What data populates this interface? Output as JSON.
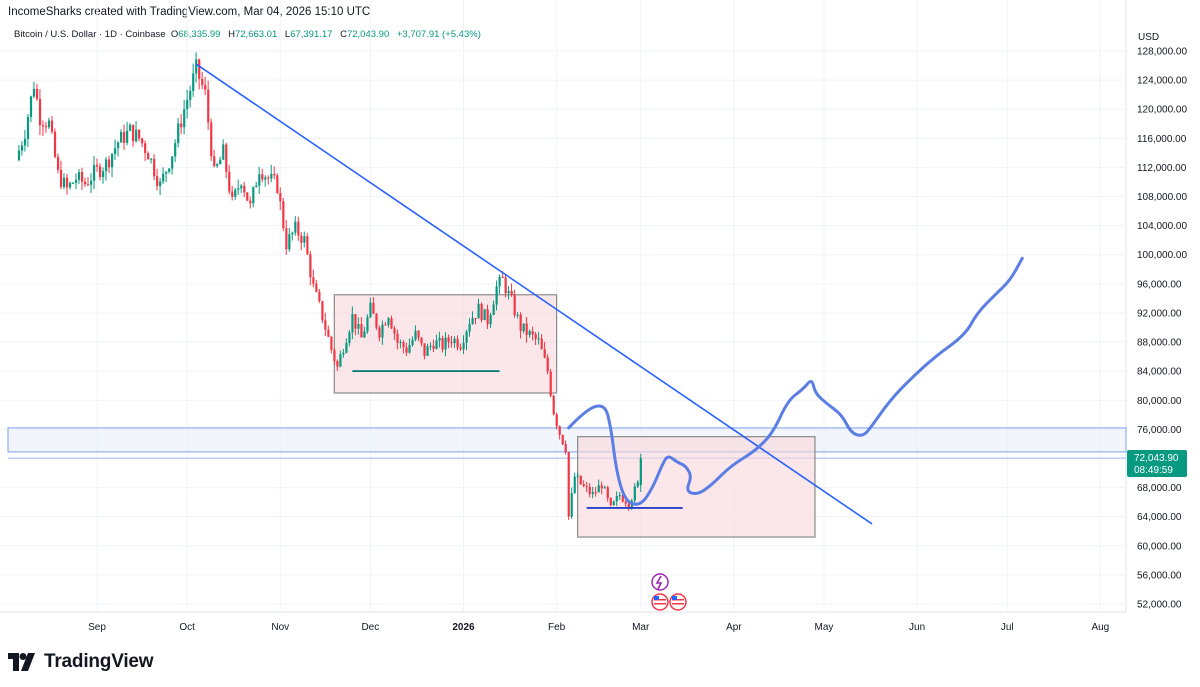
{
  "header": {
    "text": "IncomeSharks created with TradingView.com, Mar 04, 2026 15:10 UTC"
  },
  "symbol_bar": {
    "name": "Bitcoin / U.S. Dollar · 1D · Coinbase",
    "open_label": "O",
    "open": "68,335.99",
    "high_label": "H",
    "high": "72,663.01",
    "low_label": "L",
    "low": "67,391.17",
    "close_label": "C",
    "close": "72,043.90",
    "change": "+3,707.91 (+5.43%)"
  },
  "price_axis": {
    "currency": "USD",
    "last_price": "72,043.90",
    "countdown": "08:49:59"
  },
  "footer": {
    "brand": "TradingView"
  },
  "colors": {
    "up": "#089981",
    "down": "#f23645",
    "trendline": "#2962ff",
    "drawing": "#5b7ee5",
    "box_fill": "#f8d7da",
    "zone_fill": "#e8eef9",
    "price_tag": "#089981"
  },
  "icons": [
    "lightning-event-icon",
    "us-flag-event-icon"
  ],
  "chart_data": {
    "type": "candlestick",
    "title": "Bitcoin / U.S. Dollar · 1D · Coinbase",
    "ylabel": "USD",
    "ylim": [
      50000,
      130000
    ],
    "y_ticks": [
      "128,000.00",
      "124,000.00",
      "120,000.00",
      "116,000.00",
      "112,000.00",
      "108,000.00",
      "104,000.00",
      "100,000.00",
      "96,000.00",
      "92,000.00",
      "88,000.00",
      "84,000.00",
      "80,000.00",
      "76,000.00",
      "68,000.00",
      "64,000.00",
      "60,000.00",
      "56,000.00",
      "52,000.00"
    ],
    "x_ticks": [
      "Sep",
      "Oct",
      "Nov",
      "Dec",
      "2026",
      "Feb",
      "Mar",
      "Apr",
      "May",
      "Jun",
      "Jul",
      "Aug"
    ],
    "x_tick_values": [
      0,
      30,
      61,
      91,
      122,
      153,
      181,
      212,
      242,
      273,
      303,
      334
    ],
    "grid": true,
    "last_close": 72043.9,
    "anchors": [
      {
        "d": -26,
        "p": 113000
      },
      {
        "d": -23,
        "p": 117000
      },
      {
        "d": -20,
        "p": 123500
      },
      {
        "d": -18,
        "p": 119000
      },
      {
        "d": -15,
        "p": 118000
      },
      {
        "d": -12,
        "p": 111000
      },
      {
        "d": -9,
        "p": 109000
      },
      {
        "d": -6,
        "p": 110500
      },
      {
        "d": -3,
        "p": 109800
      },
      {
        "d": 0,
        "p": 111200
      },
      {
        "d": 4,
        "p": 112500
      },
      {
        "d": 8,
        "p": 115500
      },
      {
        "d": 12,
        "p": 117000
      },
      {
        "d": 15,
        "p": 116000
      },
      {
        "d": 18,
        "p": 114000
      },
      {
        "d": 22,
        "p": 109500
      },
      {
        "d": 26,
        "p": 114000
      },
      {
        "d": 30,
        "p": 120000
      },
      {
        "d": 34,
        "p": 125500
      },
      {
        "d": 37,
        "p": 122000
      },
      {
        "d": 40,
        "p": 111000
      },
      {
        "d": 43,
        "p": 114000
      },
      {
        "d": 46,
        "p": 107000
      },
      {
        "d": 49,
        "p": 110500
      },
      {
        "d": 52,
        "p": 106500
      },
      {
        "d": 55,
        "p": 112000
      },
      {
        "d": 58,
        "p": 110500
      },
      {
        "d": 61,
        "p": 109500
      },
      {
        "d": 64,
        "p": 101500
      },
      {
        "d": 67,
        "p": 103500
      },
      {
        "d": 70,
        "p": 102000
      },
      {
        "d": 73,
        "p": 95500
      },
      {
        "d": 76,
        "p": 91500
      },
      {
        "d": 79,
        "p": 87000
      },
      {
        "d": 81,
        "p": 84500
      },
      {
        "d": 83,
        "p": 87500
      },
      {
        "d": 86,
        "p": 91500
      },
      {
        "d": 89,
        "p": 88500
      },
      {
        "d": 92,
        "p": 92500
      },
      {
        "d": 95,
        "p": 89500
      },
      {
        "d": 98,
        "p": 92000
      },
      {
        "d": 101,
        "p": 88000
      },
      {
        "d": 104,
        "p": 87000
      },
      {
        "d": 107,
        "p": 89000
      },
      {
        "d": 110,
        "p": 86500
      },
      {
        "d": 113,
        "p": 88000
      },
      {
        "d": 116,
        "p": 87500
      },
      {
        "d": 119,
        "p": 88500
      },
      {
        "d": 122,
        "p": 87800
      },
      {
        "d": 125,
        "p": 91000
      },
      {
        "d": 128,
        "p": 92500
      },
      {
        "d": 131,
        "p": 91000
      },
      {
        "d": 134,
        "p": 95500
      },
      {
        "d": 136,
        "p": 96500
      },
      {
        "d": 139,
        "p": 93500
      },
      {
        "d": 142,
        "p": 90000
      },
      {
        "d": 145,
        "p": 89000
      },
      {
        "d": 148,
        "p": 88000
      },
      {
        "d": 151,
        "p": 84000
      },
      {
        "d": 153,
        "p": 78500
      },
      {
        "d": 155,
        "p": 75500
      },
      {
        "d": 157,
        "p": 73500
      },
      {
        "d": 158,
        "p": 64000
      },
      {
        "d": 160,
        "p": 69500
      },
      {
        "d": 163,
        "p": 68000
      },
      {
        "d": 166,
        "p": 67000
      },
      {
        "d": 169,
        "p": 68500
      },
      {
        "d": 172,
        "p": 65000
      },
      {
        "d": 175,
        "p": 67000
      },
      {
        "d": 178,
        "p": 66000
      },
      {
        "d": 181,
        "p": 68335.99
      }
    ],
    "last_candle": {
      "o": 68335.99,
      "h": 72663.01,
      "l": 67391.17,
      "c": 72043.9
    },
    "annotations": {
      "trendline": [
        {
          "d": 33,
          "p": 126200
        },
        {
          "d": 258,
          "p": 63000
        }
      ],
      "range_box_1": {
        "d0": 79,
        "d1": 153,
        "p0": 94500,
        "p1": 81000
      },
      "range_box_2": {
        "d0": 160,
        "d1": 239,
        "p0": 75000,
        "p1": 61200
      },
      "support_line_1": {
        "d0": 85,
        "d1": 134,
        "p": 84000
      },
      "support_line_2": {
        "d0": 163,
        "d1": 195,
        "p": 65200
      },
      "zone": {
        "p0": 76200,
        "p1": 72900
      },
      "projection_path": [
        {
          "d": 157,
          "p": 76200
        },
        {
          "d": 163,
          "p": 78800
        },
        {
          "d": 169,
          "p": 79500
        },
        {
          "d": 171,
          "p": 76500
        },
        {
          "d": 173,
          "p": 70000
        },
        {
          "d": 176,
          "p": 66000
        },
        {
          "d": 181,
          "p": 65500
        },
        {
          "d": 185,
          "p": 68000
        },
        {
          "d": 188,
          "p": 71000
        },
        {
          "d": 190,
          "p": 72500
        },
        {
          "d": 193,
          "p": 71500
        },
        {
          "d": 196,
          "p": 71000
        },
        {
          "d": 198,
          "p": 69500
        },
        {
          "d": 196,
          "p": 67500
        },
        {
          "d": 200,
          "p": 67000
        },
        {
          "d": 205,
          "p": 68500
        },
        {
          "d": 211,
          "p": 71000
        },
        {
          "d": 219,
          "p": 73000
        },
        {
          "d": 225,
          "p": 75500
        },
        {
          "d": 230,
          "p": 80000
        },
        {
          "d": 235,
          "p": 81500
        },
        {
          "d": 238,
          "p": 83000
        },
        {
          "d": 239,
          "p": 81000
        },
        {
          "d": 243,
          "p": 79500
        },
        {
          "d": 248,
          "p": 78000
        },
        {
          "d": 251,
          "p": 75500
        },
        {
          "d": 255,
          "p": 75000
        },
        {
          "d": 258,
          "p": 76500
        },
        {
          "d": 264,
          "p": 80000
        },
        {
          "d": 271,
          "p": 83000
        },
        {
          "d": 279,
          "p": 86000
        },
        {
          "d": 289,
          "p": 89000
        },
        {
          "d": 293,
          "p": 92000
        },
        {
          "d": 299,
          "p": 94500
        },
        {
          "d": 304,
          "p": 96500
        },
        {
          "d": 308,
          "p": 99500
        }
      ]
    }
  }
}
